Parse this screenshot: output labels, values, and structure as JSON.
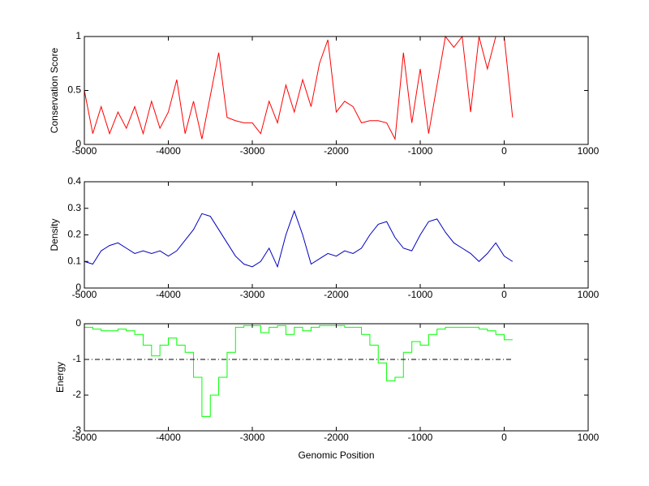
{
  "chart_data": [
    {
      "type": "line",
      "ylabel": "Conservation Score",
      "x": [
        -5000,
        -4900,
        -4800,
        -4700,
        -4600,
        -4500,
        -4400,
        -4300,
        -4200,
        -4100,
        -4000,
        -3900,
        -3800,
        -3700,
        -3600,
        -3500,
        -3400,
        -3300,
        -3200,
        -3100,
        -3000,
        -2900,
        -2800,
        -2700,
        -2600,
        -2500,
        -2400,
        -2300,
        -2200,
        -2100,
        -2000,
        -1900,
        -1800,
        -1700,
        -1600,
        -1500,
        -1400,
        -1300,
        -1200,
        -1100,
        -1000,
        -900,
        -800,
        -700,
        -600,
        -500,
        -400,
        -300,
        -200,
        -100,
        0,
        100
      ],
      "series": [
        {
          "color": "#ff0000",
          "values": [
            0.5,
            0.1,
            0.35,
            0.1,
            0.3,
            0.15,
            0.35,
            0.1,
            0.4,
            0.15,
            0.3,
            0.6,
            0.1,
            0.4,
            0.05,
            0.45,
            0.85,
            0.25,
            0.22,
            0.2,
            0.2,
            0.1,
            0.4,
            0.2,
            0.55,
            0.3,
            0.6,
            0.35,
            0.75,
            0.97,
            0.3,
            0.4,
            0.35,
            0.2,
            0.22,
            0.22,
            0.2,
            0.05,
            0.85,
            0.2,
            0.7,
            0.1,
            0.55,
            1,
            0.9,
            1,
            0.3,
            1,
            0.7,
            1,
            1,
            0.25
          ]
        }
      ],
      "xlim": [
        -5000,
        1000
      ],
      "xticks": [
        -5000,
        -4000,
        -3000,
        -2000,
        -1000,
        0,
        1000
      ],
      "ylim": [
        0,
        1
      ],
      "yticks": [
        0,
        0.5,
        1
      ]
    },
    {
      "type": "line",
      "ylabel": "Density",
      "x": [
        -5000,
        -4900,
        -4800,
        -4700,
        -4600,
        -4500,
        -4400,
        -4300,
        -4200,
        -4100,
        -4000,
        -3900,
        -3800,
        -3700,
        -3600,
        -3500,
        -3400,
        -3300,
        -3200,
        -3100,
        -3000,
        -2900,
        -2800,
        -2700,
        -2600,
        -2500,
        -2400,
        -2300,
        -2200,
        -2100,
        -2000,
        -1900,
        -1800,
        -1700,
        -1600,
        -1500,
        -1400,
        -1300,
        -1200,
        -1100,
        -1000,
        -900,
        -800,
        -700,
        -600,
        -500,
        -400,
        -300,
        -200,
        -100,
        0,
        100
      ],
      "series": [
        {
          "color": "#0000c0",
          "values": [
            0.1,
            0.09,
            0.14,
            0.16,
            0.17,
            0.15,
            0.13,
            0.14,
            0.13,
            0.14,
            0.12,
            0.14,
            0.18,
            0.22,
            0.28,
            0.27,
            0.22,
            0.17,
            0.12,
            0.09,
            0.08,
            0.1,
            0.15,
            0.08,
            0.2,
            0.29,
            0.2,
            0.09,
            0.11,
            0.13,
            0.12,
            0.14,
            0.13,
            0.15,
            0.2,
            0.24,
            0.25,
            0.19,
            0.15,
            0.14,
            0.2,
            0.25,
            0.26,
            0.21,
            0.17,
            0.15,
            0.13,
            0.1,
            0.13,
            0.17,
            0.12,
            0.1
          ]
        }
      ],
      "xlim": [
        -5000,
        1000
      ],
      "xticks": [
        -5000,
        -4000,
        -3000,
        -2000,
        -1000,
        0,
        1000
      ],
      "ylim": [
        0,
        0.4
      ],
      "yticks": [
        0,
        0.1,
        0.2,
        0.3,
        0.4
      ]
    },
    {
      "type": "line",
      "ylabel": "Energy",
      "xlabel": "Genomic Position",
      "x": [
        -5000,
        -4900,
        -4800,
        -4700,
        -4600,
        -4500,
        -4400,
        -4300,
        -4200,
        -4100,
        -4000,
        -3900,
        -3800,
        -3700,
        -3600,
        -3500,
        -3400,
        -3300,
        -3200,
        -3100,
        -3000,
        -2900,
        -2800,
        -2700,
        -2600,
        -2500,
        -2400,
        -2300,
        -2200,
        -2100,
        -2000,
        -1900,
        -1800,
        -1700,
        -1600,
        -1500,
        -1400,
        -1300,
        -1200,
        -1100,
        -1000,
        -900,
        -800,
        -700,
        -600,
        -500,
        -400,
        -300,
        -200,
        -100,
        0,
        100
      ],
      "series": [
        {
          "color": "#00ff00",
          "drawstyle": "steps",
          "values": [
            -0.1,
            -0.15,
            -0.2,
            -0.2,
            -0.15,
            -0.2,
            -0.3,
            -0.6,
            -0.9,
            -0.6,
            -0.4,
            -0.6,
            -0.8,
            -1.5,
            -2.6,
            -2.0,
            -1.5,
            -0.8,
            -0.1,
            -0.05,
            -0.05,
            -0.25,
            -0.1,
            -0.05,
            -0.3,
            -0.1,
            -0.2,
            -0.1,
            -0.05,
            -0.05,
            -0.05,
            -0.1,
            -0.1,
            -0.3,
            -0.6,
            -1.1,
            -1.6,
            -1.5,
            -0.8,
            -0.5,
            -0.6,
            -0.3,
            -0.15,
            -0.1,
            -0.1,
            -0.1,
            -0.1,
            -0.15,
            -0.2,
            -0.3,
            -0.45,
            -0.45
          ]
        },
        {
          "color": "#000000",
          "linestyle": "dashdot",
          "x": [
            -5000,
            100
          ],
          "values": [
            -1,
            -1
          ]
        }
      ],
      "xlim": [
        -5000,
        1000
      ],
      "xticks": [
        -5000,
        -4000,
        -3000,
        -2000,
        -1000,
        0,
        1000
      ],
      "ylim": [
        -3,
        0
      ],
      "yticks": [
        -3,
        -2,
        -1,
        0
      ]
    }
  ]
}
